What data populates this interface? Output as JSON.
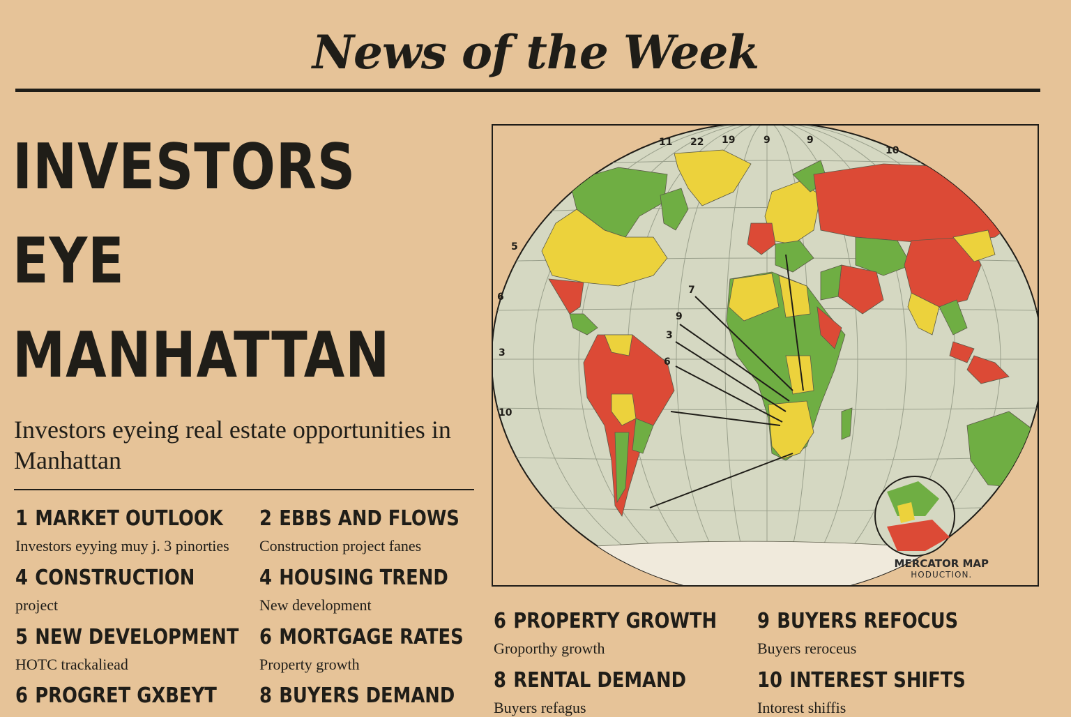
{
  "masthead": "News of the Week",
  "headline": [
    "INVESTORS",
    "EYE",
    "MANHATTAN"
  ],
  "subhead": "Investors eyeing real estate opportunities in Manhattan",
  "left_items": [
    {
      "num": "1",
      "title": "MARKET OUTLOOK",
      "sub": "Investors eyying muy j. 3 pinorties"
    },
    {
      "num": "2",
      "title": "EBBS AND FLOWS",
      "sub": "Construction project fanes"
    },
    {
      "num": "4",
      "title": "CONSTRUCTION",
      "sub": "project"
    },
    {
      "num": "4",
      "title": "HOUSING TREND",
      "sub": "New development"
    },
    {
      "num": "5",
      "title": "NEW DEVELOPMENT",
      "sub": "HOTC trackaliead"
    },
    {
      "num": "6",
      "title": "MORTGAGE RATES",
      "sub": "Property growth"
    },
    {
      "num": "6",
      "title": "PROGRET GXBEYT",
      "sub": ""
    },
    {
      "num": "8",
      "title": "BUYERS DEMAND",
      "sub": ""
    }
  ],
  "right_items": [
    {
      "num": "6",
      "title": "PROPERTY GROWTH",
      "sub": "Groporthy growth"
    },
    {
      "num": "9",
      "title": "BUYERS REFOCUS",
      "sub": "Buyers reroceus"
    },
    {
      "num": "8",
      "title": "RENTAL DEMAND",
      "sub": "Buyers refagus"
    },
    {
      "num": "10",
      "title": "INTEREST SHIFTS",
      "sub": "Intorest shiffis"
    }
  ],
  "map": {
    "caption_line1": "MERCATOR MAP",
    "caption_line2": "HODUCTION.",
    "top_labels": [
      "11",
      "22",
      "19",
      "9",
      "9",
      "10"
    ],
    "side_labels": [
      "5",
      "6",
      "3",
      "10"
    ],
    "callout_labels": [
      "7",
      "9",
      "3",
      "6"
    ],
    "colors": {
      "ocean": "#d5d8c2",
      "red": "#dc4a36",
      "yellow": "#ecd23c",
      "green": "#6fae43",
      "ice": "#f0eadc"
    }
  }
}
